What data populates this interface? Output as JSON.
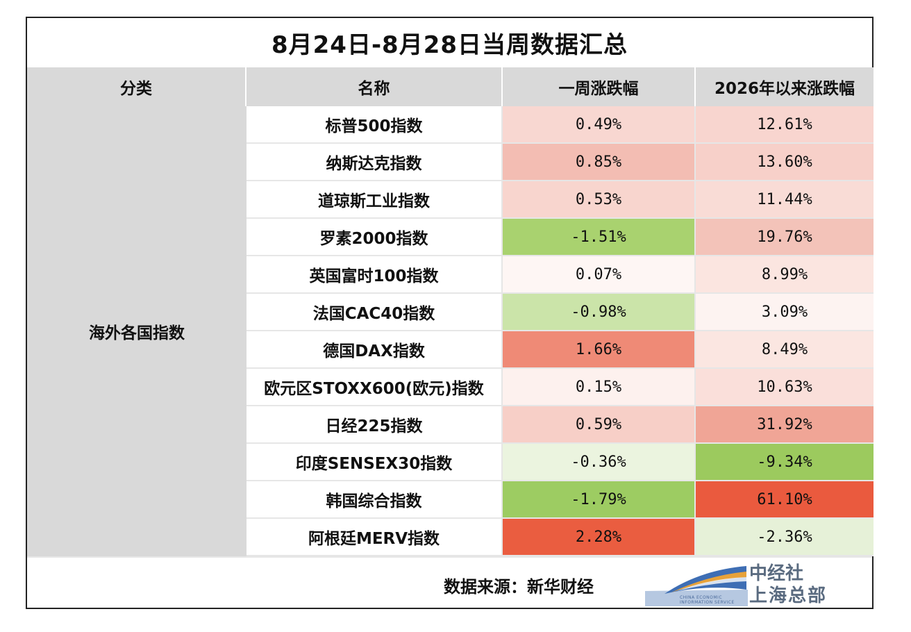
{
  "title": "8月24日-8月28日当周数据汇总",
  "headers": {
    "category": "分类",
    "name": "名称",
    "week": "一周涨跌幅",
    "ytd": "2026年以来涨跌幅"
  },
  "category": "海外各国指数",
  "rows": [
    {
      "name": "标普500指数",
      "week": "0.49%",
      "ytd": "12.61%",
      "week_color": "#f8d7d1",
      "ytd_color": "#f8d5cf"
    },
    {
      "name": "纳斯达克指数",
      "week": "0.85%",
      "ytd": "13.60%",
      "week_color": "#f3bdb3",
      "ytd_color": "#f7d0c9"
    },
    {
      "name": "道琼斯工业指数",
      "week": "0.53%",
      "ytd": "11.44%",
      "week_color": "#f8d5ce",
      "ytd_color": "#f9dcd6"
    },
    {
      "name": "罗素2000指数",
      "week": "-1.51%",
      "ytd": "19.76%",
      "week_color": "#a9d26f",
      "ytd_color": "#f3c3b9"
    },
    {
      "name": "英国富时100指数",
      "week": "0.07%",
      "ytd": "8.99%",
      "week_color": "#fef6f4",
      "ytd_color": "#fbe5e0"
    },
    {
      "name": "法国CAC40指数",
      "week": "-0.98%",
      "ytd": "3.09%",
      "week_color": "#cbe4a9",
      "ytd_color": "#fdf3f1"
    },
    {
      "name": "德国DAX指数",
      "week": "1.66%",
      "ytd": "8.49%",
      "week_color": "#ef8a76",
      "ytd_color": "#fbe6e1"
    },
    {
      "name": "欧元区STOXX600(欧元)指数",
      "week": "0.15%",
      "ytd": "10.63%",
      "week_color": "#fdf1ee",
      "ytd_color": "#fadfda"
    },
    {
      "name": "日经225指数",
      "week": "0.59%",
      "ytd": "31.92%",
      "week_color": "#f7cfc7",
      "ytd_color": "#f0a596"
    },
    {
      "name": "印度SENSEX30指数",
      "week": "-0.36%",
      "ytd": "-9.34%",
      "week_color": "#ebf4df",
      "ytd_color": "#9cca5e"
    },
    {
      "name": "韩国综合指数",
      "week": "-1.79%",
      "ytd": "61.10%",
      "week_color": "#9dcc62",
      "ytd_color": "#ea5a3e"
    },
    {
      "name": "阿根廷MERV指数",
      "week": "2.28%",
      "ytd": "-2.36%",
      "week_color": "#ea5d40",
      "ytd_color": "#e6f1d8"
    }
  ],
  "footer": {
    "source": "数据来源：新华财经",
    "logo_cn_line1": "中经社",
    "logo_cn_line2": "上海总部",
    "logo_en_line1": "CHINA ECONOMIC",
    "logo_en_line2": "INFORMATION SERVICE"
  },
  "colors": {
    "header_bg": "#d9d9d9",
    "logo_blue": "#4a6a9a",
    "logo_gray": "#5a6b80"
  }
}
